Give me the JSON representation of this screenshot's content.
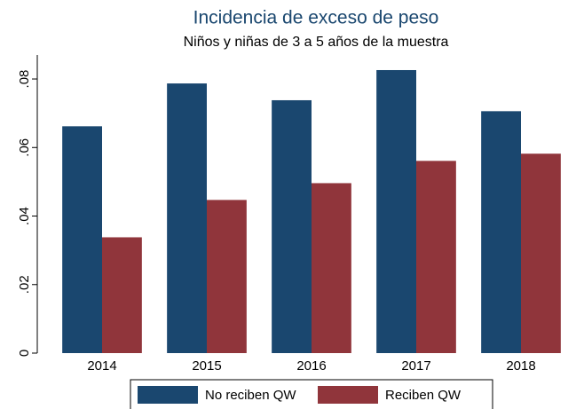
{
  "chart_data": {
    "type": "bar",
    "title": "Incidencia de exceso de peso",
    "subtitle": "Niños y niñas de 3 a 5 años de la muestra",
    "categories": [
      "2014",
      "2015",
      "2016",
      "2017",
      "2018"
    ],
    "series": [
      {
        "name": "No reciben QW",
        "color": "#1a476f",
        "values": [
          0.0662,
          0.0787,
          0.0738,
          0.0826,
          0.0706
        ]
      },
      {
        "name": "Reciben QW",
        "color": "#90353b",
        "values": [
          0.0338,
          0.0447,
          0.0496,
          0.0561,
          0.0582
        ]
      }
    ],
    "ylim": [
      0,
      0.087
    ],
    "yticks": [
      0,
      {
        "value": 0.02,
        "label": ".02"
      },
      {
        "value": 0.04,
        "label": ".04"
      },
      {
        "value": 0.06,
        "label": ".06"
      },
      {
        "value": 0.08,
        "label": ".08"
      }
    ],
    "grid": false,
    "legend": "bottom"
  }
}
